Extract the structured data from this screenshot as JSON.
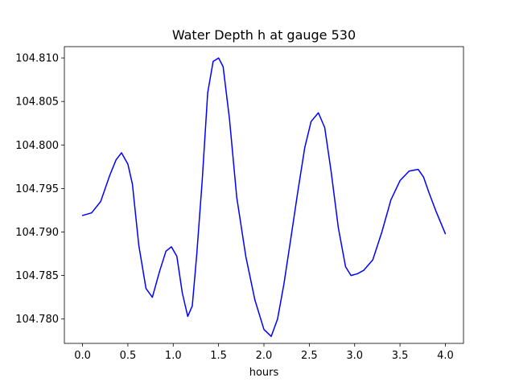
{
  "chart_data": {
    "type": "line",
    "title": "Water Depth h at gauge 530",
    "xlabel": "hours",
    "ylabel": "",
    "xlim": [
      -0.2,
      4.2
    ],
    "ylim": [
      104.7772,
      104.8113
    ],
    "xticks": [
      0.0,
      0.5,
      1.0,
      1.5,
      2.0,
      2.5,
      3.0,
      3.5,
      4.0
    ],
    "xtick_labels": [
      "0.0",
      "0.5",
      "1.0",
      "1.5",
      "2.0",
      "2.5",
      "3.0",
      "3.5",
      "4.0"
    ],
    "yticks": [
      104.78,
      104.785,
      104.79,
      104.795,
      104.8,
      104.805,
      104.81
    ],
    "ytick_labels": [
      "104.780",
      "104.785",
      "104.790",
      "104.795",
      "104.800",
      "104.805",
      "104.810"
    ],
    "grid": false,
    "series": [
      {
        "color": "#0000ff",
        "x": [
          0.0,
          0.1,
          0.2,
          0.3,
          0.37,
          0.43,
          0.5,
          0.55,
          0.62,
          0.7,
          0.77,
          0.85,
          0.92,
          0.98,
          1.04,
          1.1,
          1.16,
          1.21,
          1.26,
          1.32,
          1.38,
          1.44,
          1.5,
          1.55,
          1.62,
          1.7,
          1.8,
          1.9,
          2.0,
          2.08,
          2.15,
          2.22,
          2.3,
          2.37,
          2.45,
          2.52,
          2.6,
          2.67,
          2.74,
          2.82,
          2.9,
          2.96,
          3.03,
          3.1,
          3.2,
          3.3,
          3.4,
          3.5,
          3.6,
          3.7,
          3.76,
          3.82,
          3.9,
          4.0
        ],
        "y": [
          104.7919,
          104.7922,
          104.7935,
          104.7965,
          104.7983,
          104.7991,
          104.7978,
          104.7955,
          104.7885,
          104.7835,
          104.7825,
          104.7855,
          104.7878,
          104.7883,
          104.7872,
          104.783,
          104.7803,
          104.7815,
          104.7875,
          104.796,
          104.806,
          104.8096,
          104.81,
          104.809,
          104.803,
          104.794,
          104.7872,
          104.7822,
          104.7788,
          104.778,
          104.78,
          104.784,
          104.7895,
          104.7944,
          104.7997,
          104.8027,
          104.8037,
          104.802,
          104.797,
          104.7905,
          104.786,
          104.785,
          104.7852,
          104.7856,
          104.7868,
          104.79,
          104.7937,
          104.7959,
          104.797,
          104.7972,
          104.7963,
          104.7945,
          104.7923,
          104.7898
        ]
      }
    ]
  }
}
